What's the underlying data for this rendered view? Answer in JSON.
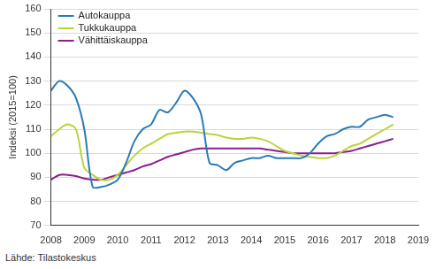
{
  "chart_data": {
    "type": "line",
    "y_label": "Indeksi (2015=100)",
    "source": "Lähde: Tilastokeskus",
    "x": [
      2008,
      2008.25,
      2008.5,
      2008.75,
      2009,
      2009.25,
      2009.5,
      2009.75,
      2010,
      2010.25,
      2010.5,
      2010.75,
      2011,
      2011.25,
      2011.5,
      2011.75,
      2012,
      2012.25,
      2012.5,
      2012.75,
      2013,
      2013.25,
      2013.5,
      2013.75,
      2014,
      2014.25,
      2014.5,
      2014.75,
      2015,
      2015.25,
      2015.5,
      2015.75,
      2016,
      2016.25,
      2016.5,
      2016.75,
      2017,
      2017.25,
      2017.5,
      2017.75,
      2018,
      2018.25
    ],
    "series": [
      {
        "name": "Autokauppa",
        "color": "#2a7ab8",
        "values": [
          126,
          130,
          128,
          123,
          110,
          86,
          86,
          87,
          89,
          96,
          105,
          110,
          112,
          118,
          117,
          121,
          126,
          123,
          116,
          96,
          95,
          93,
          96,
          97,
          98,
          98,
          99,
          98,
          98,
          98,
          98,
          100,
          104,
          107,
          108,
          110,
          111,
          111,
          114,
          115,
          116,
          115
        ]
      },
      {
        "name": "Tukkukauppa",
        "color": "#b8d43c",
        "values": [
          107,
          110,
          112,
          110,
          94,
          91,
          89,
          89,
          91,
          95,
          99,
          102,
          104,
          106,
          108,
          108.5,
          109,
          109,
          108.5,
          108,
          107.5,
          106.5,
          106,
          106,
          106.5,
          106,
          105,
          103,
          101,
          100,
          99,
          98.5,
          98,
          98,
          99,
          101,
          103,
          104,
          106,
          108,
          110,
          112
        ]
      },
      {
        "name": "Vähittäiskauppa",
        "color": "#8c1c8c",
        "values": [
          89,
          91,
          91,
          90.5,
          89.5,
          89,
          89,
          90,
          91,
          92,
          93,
          94.5,
          95.5,
          97,
          98.5,
          99.5,
          100.5,
          101.5,
          102,
          102,
          102,
          102,
          102,
          102,
          102,
          102,
          101.5,
          101,
          100.5,
          100,
          100,
          100,
          100,
          100,
          100,
          100.5,
          101,
          102,
          103,
          104,
          105,
          106
        ]
      }
    ],
    "xlim": [
      2008,
      2019
    ],
    "xticks": [
      2008,
      2009,
      2010,
      2011,
      2012,
      2013,
      2014,
      2015,
      2016,
      2017,
      2018,
      2019
    ],
    "ylim": [
      70,
      160
    ],
    "yticks": [
      70,
      80,
      90,
      100,
      110,
      120,
      130,
      140,
      150,
      160
    ],
    "grid": true,
    "legend": "top-left"
  }
}
